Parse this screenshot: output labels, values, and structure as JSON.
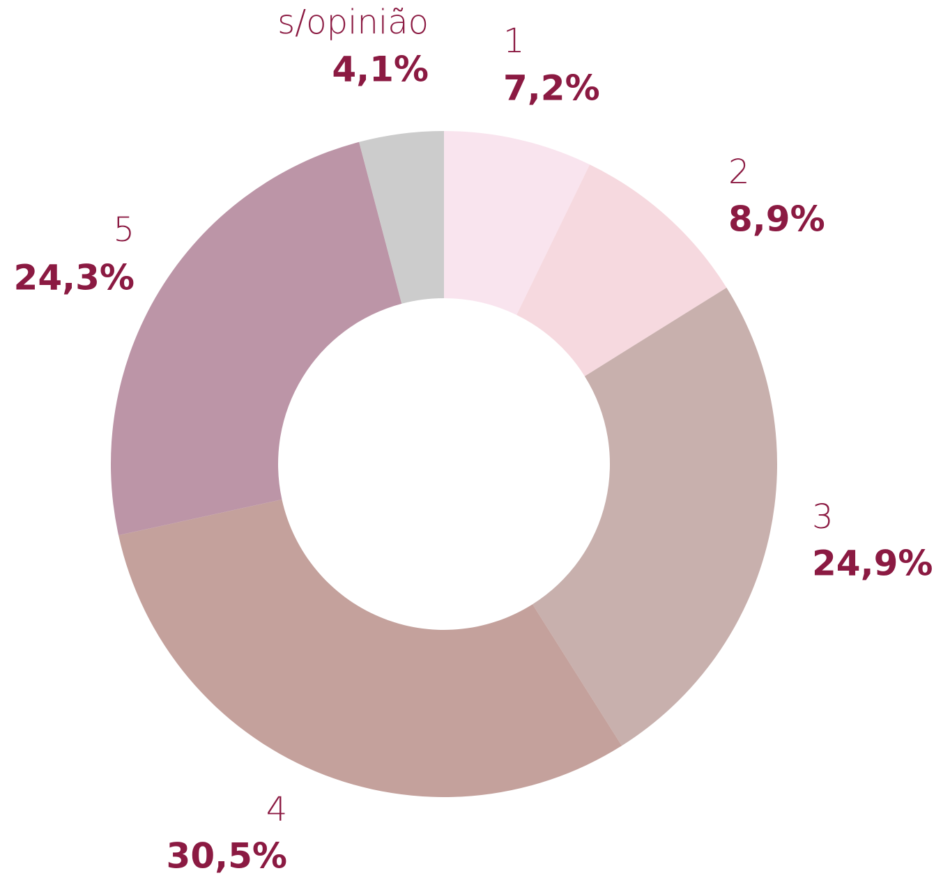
{
  "chart_data": {
    "type": "donut",
    "categories": [
      "1",
      "2",
      "3",
      "4",
      "5",
      "s/opinião"
    ],
    "values": [
      7.2,
      8.9,
      24.9,
      30.5,
      24.3,
      4.1
    ],
    "value_labels": [
      "7,2%",
      "8,9%",
      "24,9%",
      "30,5%",
      "24,3%",
      "4,1%"
    ],
    "colors": [
      "#f9e4ee",
      "#f6d9df",
      "#c8b0ad",
      "#c4a19c",
      "#bc95a7",
      "#cccccc"
    ]
  }
}
